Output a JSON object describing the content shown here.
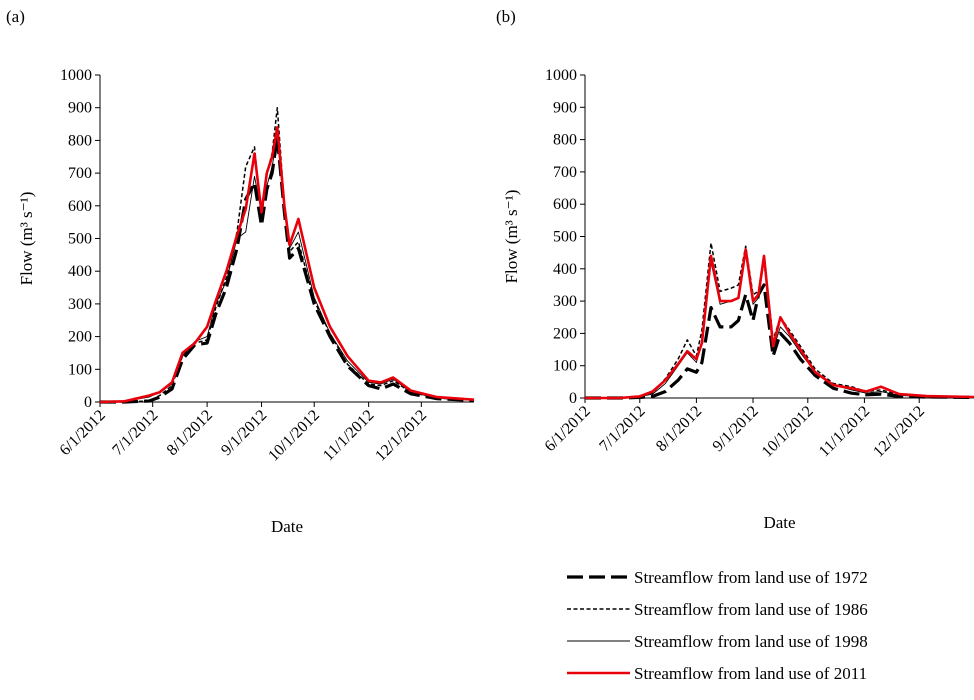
{
  "chart_data": [
    {
      "type": "line",
      "panel_label": "(a)",
      "xlabel": "Date",
      "ylabel": "Flow (m³ s⁻¹)",
      "ylim": [
        0,
        1000
      ],
      "yticks": [
        0,
        100,
        200,
        300,
        400,
        500,
        600,
        700,
        800,
        900,
        1000
      ],
      "xlim": [
        "2012-06-01",
        "2012-12-31"
      ],
      "xticks": [
        "2012-06-01",
        "2012-07-01",
        "2012-08-01",
        "2012-09-01",
        "2012-10-01",
        "2012-11-01",
        "2012-12-01"
      ],
      "xtick_labels": [
        "6/1/2012",
        "7/1/2012",
        "8/1/2012",
        "9/1/2012",
        "10/1/2012",
        "11/1/2012",
        "12/1/2012"
      ],
      "grid": false,
      "series": [
        {
          "name": "Streamflow from land use of 1972",
          "x": [
            "2012-06-01",
            "2012-06-15",
            "2012-06-29",
            "2012-07-05",
            "2012-07-12",
            "2012-07-18",
            "2012-07-25",
            "2012-08-01",
            "2012-08-06",
            "2012-08-12",
            "2012-08-18",
            "2012-08-23",
            "2012-08-28",
            "2012-09-01",
            "2012-09-04",
            "2012-09-07",
            "2012-09-10",
            "2012-09-14",
            "2012-09-17",
            "2012-09-22",
            "2012-10-01",
            "2012-10-10",
            "2012-10-20",
            "2012-11-01",
            "2012-11-08",
            "2012-11-15",
            "2012-11-25",
            "2012-12-10",
            "2012-12-31"
          ],
          "y": [
            0,
            0,
            3,
            15,
            40,
            130,
            175,
            180,
            270,
            350,
            470,
            620,
            670,
            540,
            650,
            700,
            810,
            580,
            440,
            470,
            300,
            200,
            110,
            50,
            40,
            55,
            25,
            10,
            5
          ]
        },
        {
          "name": "Streamflow from land use of 1986",
          "x": [
            "2012-06-01",
            "2012-06-15",
            "2012-06-29",
            "2012-07-05",
            "2012-07-12",
            "2012-07-18",
            "2012-07-25",
            "2012-08-01",
            "2012-08-06",
            "2012-08-12",
            "2012-08-18",
            "2012-08-23",
            "2012-08-28",
            "2012-09-01",
            "2012-09-04",
            "2012-09-07",
            "2012-09-10",
            "2012-09-14",
            "2012-09-17",
            "2012-09-22",
            "2012-10-01",
            "2012-10-10",
            "2012-10-20",
            "2012-11-01",
            "2012-11-08",
            "2012-11-15",
            "2012-11-25",
            "2012-12-10",
            "2012-12-31"
          ],
          "y": [
            0,
            0,
            3,
            20,
            50,
            140,
            180,
            190,
            290,
            380,
            520,
            720,
            780,
            560,
            700,
            760,
            900,
            600,
            460,
            490,
            310,
            210,
            115,
            55,
            50,
            65,
            30,
            12,
            6
          ]
        },
        {
          "name": "Streamflow from land use of 1998",
          "x": [
            "2012-06-01",
            "2012-06-15",
            "2012-06-29",
            "2012-07-05",
            "2012-07-12",
            "2012-07-18",
            "2012-07-25",
            "2012-08-01",
            "2012-08-06",
            "2012-08-12",
            "2012-08-18",
            "2012-08-23",
            "2012-08-28",
            "2012-09-01",
            "2012-09-04",
            "2012-09-07",
            "2012-09-10",
            "2012-09-14",
            "2012-09-17",
            "2012-09-22",
            "2012-10-01",
            "2012-10-10",
            "2012-10-20",
            "2012-11-01",
            "2012-11-08",
            "2012-11-15",
            "2012-11-25",
            "2012-12-10",
            "2012-12-31"
          ],
          "y": [
            0,
            2,
            15,
            30,
            55,
            140,
            185,
            200,
            300,
            370,
            500,
            520,
            690,
            580,
            660,
            720,
            810,
            600,
            470,
            520,
            320,
            210,
            125,
            60,
            55,
            70,
            30,
            12,
            6
          ]
        },
        {
          "name": "Streamflow from land use of 2011",
          "x": [
            "2012-06-01",
            "2012-06-15",
            "2012-06-29",
            "2012-07-05",
            "2012-07-12",
            "2012-07-18",
            "2012-07-25",
            "2012-08-01",
            "2012-08-06",
            "2012-08-12",
            "2012-08-18",
            "2012-08-23",
            "2012-08-28",
            "2012-09-01",
            "2012-09-04",
            "2012-09-07",
            "2012-09-10",
            "2012-09-14",
            "2012-09-17",
            "2012-09-22",
            "2012-10-01",
            "2012-10-10",
            "2012-10-20",
            "2012-11-01",
            "2012-11-08",
            "2012-11-15",
            "2012-11-25",
            "2012-12-10",
            "2012-12-31"
          ],
          "y": [
            0,
            2,
            20,
            30,
            60,
            150,
            180,
            230,
            310,
            400,
            510,
            590,
            760,
            580,
            700,
            750,
            840,
            600,
            480,
            560,
            350,
            230,
            140,
            65,
            60,
            75,
            35,
            15,
            7
          ]
        }
      ]
    },
    {
      "type": "line",
      "panel_label": "(b)",
      "xlabel": "Date",
      "ylabel": "Flow (m³ s⁻¹)",
      "ylim": [
        0,
        1000
      ],
      "yticks": [
        0,
        100,
        200,
        300,
        400,
        500,
        600,
        700,
        800,
        900,
        1000
      ],
      "xlim": [
        "2012-06-01",
        "2012-12-31"
      ],
      "xticks": [
        "2012-06-01",
        "2012-07-01",
        "2012-08-01",
        "2012-09-01",
        "2012-10-01",
        "2012-11-01",
        "2012-12-01"
      ],
      "xtick_labels": [
        "6/1/2012",
        "7/1/2012",
        "8/1/2012",
        "9/1/2012",
        "10/1/2012",
        "11/1/2012",
        "12/1/2012"
      ],
      "grid": false,
      "series": [
        {
          "name": "Streamflow from land use of 1972",
          "x": [
            "2012-06-01",
            "2012-06-20",
            "2012-07-01",
            "2012-07-08",
            "2012-07-15",
            "2012-07-22",
            "2012-07-27",
            "2012-08-01",
            "2012-08-04",
            "2012-08-09",
            "2012-08-14",
            "2012-08-20",
            "2012-08-24",
            "2012-08-28",
            "2012-09-01",
            "2012-09-04",
            "2012-09-07",
            "2012-09-12",
            "2012-09-16",
            "2012-09-21",
            "2012-09-27",
            "2012-10-05",
            "2012-10-15",
            "2012-10-25",
            "2012-11-02",
            "2012-11-10",
            "2012-11-20",
            "2012-12-05",
            "2012-12-31"
          ],
          "y": [
            0,
            0,
            2,
            5,
            20,
            55,
            90,
            80,
            110,
            280,
            220,
            220,
            240,
            320,
            240,
            320,
            350,
            130,
            200,
            170,
            120,
            70,
            30,
            15,
            10,
            12,
            5,
            3,
            2
          ]
        },
        {
          "name": "Streamflow from land use of 1986",
          "x": [
            "2012-06-01",
            "2012-06-20",
            "2012-07-01",
            "2012-07-08",
            "2012-07-15",
            "2012-07-22",
            "2012-07-27",
            "2012-08-01",
            "2012-08-04",
            "2012-08-09",
            "2012-08-14",
            "2012-08-20",
            "2012-08-24",
            "2012-08-28",
            "2012-09-01",
            "2012-09-04",
            "2012-09-07",
            "2012-09-12",
            "2012-09-16",
            "2012-09-21",
            "2012-09-27",
            "2012-10-05",
            "2012-10-15",
            "2012-10-25",
            "2012-11-02",
            "2012-11-10",
            "2012-11-20",
            "2012-12-05",
            "2012-12-31"
          ],
          "y": [
            0,
            0,
            5,
            15,
            60,
            120,
            180,
            130,
            210,
            480,
            330,
            340,
            350,
            470,
            320,
            330,
            440,
            180,
            250,
            210,
            160,
            90,
            45,
            35,
            20,
            25,
            10,
            5,
            3
          ]
        },
        {
          "name": "Streamflow from land use of 1998",
          "x": [
            "2012-06-01",
            "2012-06-20",
            "2012-07-01",
            "2012-07-08",
            "2012-07-15",
            "2012-07-22",
            "2012-07-27",
            "2012-08-01",
            "2012-08-04",
            "2012-08-09",
            "2012-08-14",
            "2012-08-20",
            "2012-08-24",
            "2012-08-28",
            "2012-09-01",
            "2012-09-04",
            "2012-09-07",
            "2012-09-12",
            "2012-09-16",
            "2012-09-21",
            "2012-09-27",
            "2012-10-05",
            "2012-10-15",
            "2012-10-25",
            "2012-11-02",
            "2012-11-10",
            "2012-11-20",
            "2012-12-05",
            "2012-12-31"
          ],
          "y": [
            0,
            0,
            4,
            12,
            45,
            100,
            140,
            110,
            170,
            420,
            290,
            300,
            310,
            450,
            290,
            310,
            420,
            150,
            220,
            190,
            140,
            80,
            40,
            25,
            15,
            20,
            8,
            4,
            2
          ]
        },
        {
          "name": "Streamflow from land use of 2011",
          "x": [
            "2012-06-01",
            "2012-06-20",
            "2012-07-01",
            "2012-07-08",
            "2012-07-15",
            "2012-07-22",
            "2012-07-27",
            "2012-08-01",
            "2012-08-04",
            "2012-08-09",
            "2012-08-14",
            "2012-08-20",
            "2012-08-24",
            "2012-08-28",
            "2012-09-01",
            "2012-09-04",
            "2012-09-07",
            "2012-09-12",
            "2012-09-16",
            "2012-09-21",
            "2012-09-27",
            "2012-10-05",
            "2012-10-15",
            "2012-10-25",
            "2012-11-02",
            "2012-11-10",
            "2012-11-20",
            "2012-12-05",
            "2012-12-31"
          ],
          "y": [
            0,
            0,
            5,
            20,
            55,
            105,
            145,
            120,
            170,
            440,
            300,
            300,
            310,
            460,
            300,
            320,
            440,
            160,
            250,
            200,
            150,
            80,
            40,
            30,
            20,
            35,
            12,
            6,
            3
          ]
        }
      ]
    }
  ],
  "legend": {
    "position": "bottom-right",
    "entries": [
      {
        "label": "Streamflow from land use of 1972",
        "color": "#000000",
        "style": "long-dash",
        "width": 3.2
      },
      {
        "label": "Streamflow from land use of 1986",
        "color": "#000000",
        "style": "short-dash",
        "width": 1.5
      },
      {
        "label": "Streamflow from land use of 1998",
        "color": "#000000",
        "style": "solid",
        "width": 0.9
      },
      {
        "label": "Streamflow from land use of 2011",
        "color": "#e8000b",
        "style": "solid",
        "width": 2.6
      }
    ]
  }
}
